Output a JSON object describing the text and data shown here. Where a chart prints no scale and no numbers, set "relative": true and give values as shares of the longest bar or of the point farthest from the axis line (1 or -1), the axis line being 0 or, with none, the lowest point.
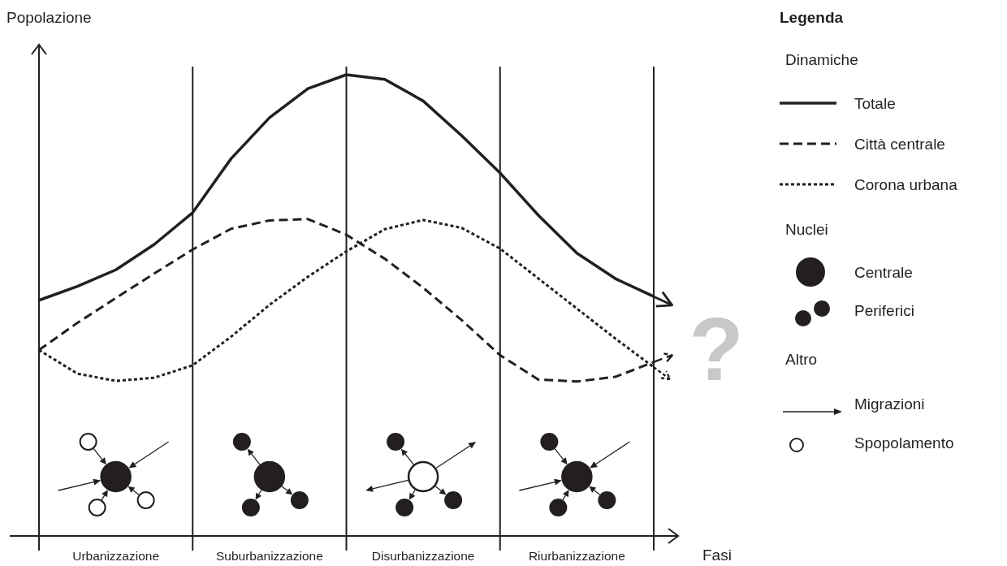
{
  "chart_data": {
    "type": "line",
    "relative": true,
    "ylabel": "Popolazione",
    "xlabel": "Fasi",
    "legend_title": "Legenda",
    "legend": "right",
    "grid": "x",
    "categories": [
      null,
      null,
      "Urbanizzazione",
      null,
      null,
      null,
      "Suburbanizzazione",
      null,
      null,
      null,
      "Disurbanizzazione",
      null,
      null,
      null,
      "Riurbanizzazione",
      null,
      null
    ],
    "series": [
      {
        "name": "Totale",
        "color": "#231f20",
        "line_style": "solid",
        "values": [
          0.511,
          0.541,
          0.577,
          0.632,
          0.701,
          0.818,
          0.907,
          0.97,
          1,
          0.99,
          0.943,
          0.868,
          0.787,
          0.695,
          0.613,
          0.558,
          0.519
        ]
      },
      {
        "name": "Città centrale",
        "color": "#231f20",
        "line_style": "dashed",
        "values": [
          0.403,
          0.462,
          0.516,
          0.569,
          0.621,
          0.666,
          0.684,
          0.687,
          0.653,
          0.601,
          0.538,
          0.468,
          0.392,
          0.339,
          0.335,
          0.345,
          0.377
        ]
      },
      {
        "name": "Corona urbana",
        "color": "#231f20",
        "line_style": "dotted",
        "values": [
          0.403,
          0.352,
          0.336,
          0.343,
          0.37,
          0.432,
          0.501,
          0.562,
          0.617,
          0.665,
          0.685,
          0.668,
          0.623,
          0.558,
          0.493,
          0.428,
          0.366
        ]
      }
    ],
    "annotations": [
      "Dinamiche",
      "Nuclei",
      "Centrale",
      "Periferici",
      "Altro",
      "Migrazioni",
      "Spopolamento",
      "?"
    ]
  }
}
